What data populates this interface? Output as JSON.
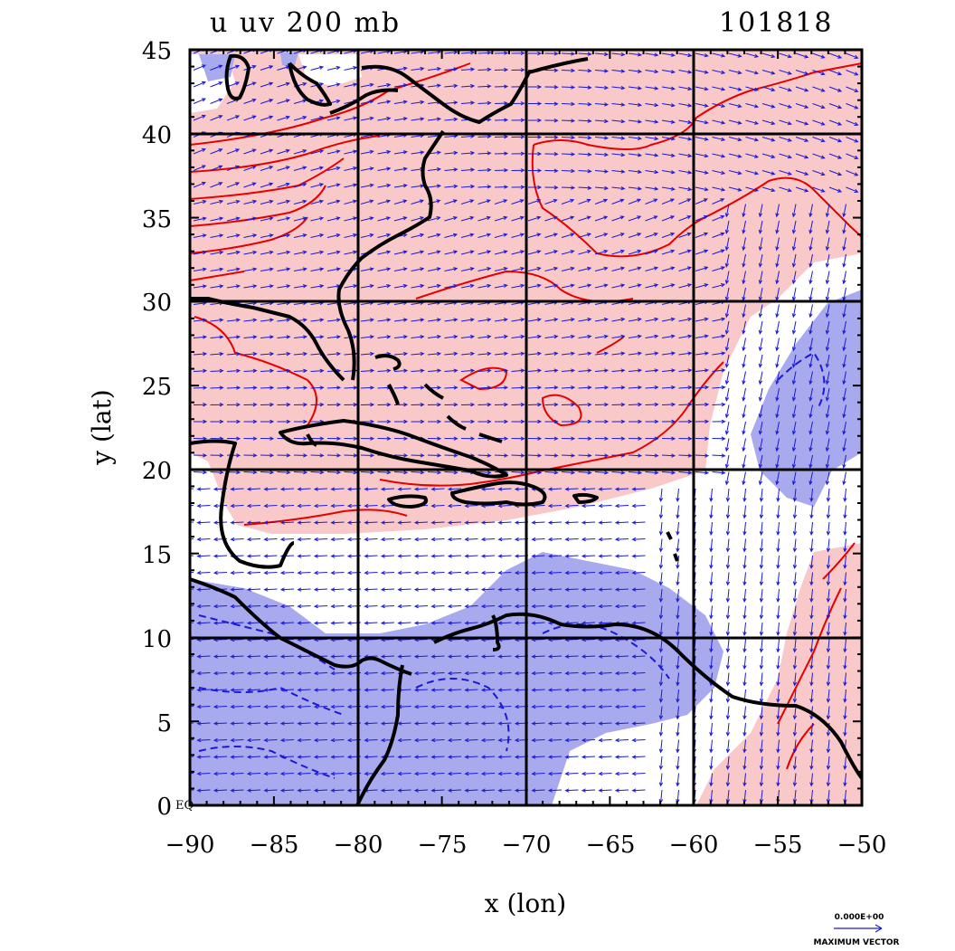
{
  "title_left": "u uv 200 mb",
  "title_right": "101818",
  "xlabel": "x (lon)",
  "ylabel": "y (lat)",
  "x_ticks": [
    "−90",
    "−85",
    "−80",
    "−75",
    "−70",
    "−65",
    "−60",
    "−55",
    "−50"
  ],
  "y_ticks": [
    "45",
    "40",
    "35",
    "30",
    "25",
    "20",
    "15",
    "10",
    "5",
    "0"
  ],
  "y_zero_suffix": "EQ",
  "vector_key": {
    "value": "0.000E+00",
    "label": "MAXIMUM VECTOR"
  },
  "colors": {
    "positive_fill": "#f9c8c8",
    "negative_fill": "#a9a9ee",
    "positive_contour": "#e60000",
    "negative_contour": "#1a1ad6",
    "vectors": "#1a1ad6",
    "coast": "#000000",
    "grid": "#000000"
  },
  "chart_data": {
    "type": "map",
    "variable": "u, uv 200 mb",
    "lon_range": [
      -90,
      -50
    ],
    "lat_range": [
      0,
      45
    ],
    "grid_lon": [
      -80,
      -70,
      -60
    ],
    "grid_lat": [
      10,
      20,
      30,
      40
    ]
  }
}
